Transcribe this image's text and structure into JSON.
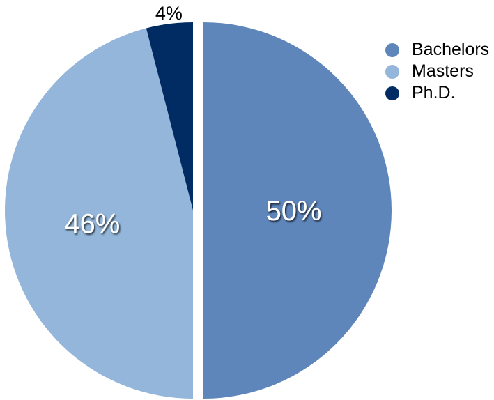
{
  "chart_data": {
    "type": "pie",
    "title": "",
    "slices": [
      {
        "label": "Bachelors",
        "value": 50,
        "display": "50%",
        "color": "#5e86ba"
      },
      {
        "label": "Masters",
        "value": 46,
        "display": "46%",
        "color": "#93b6da"
      },
      {
        "label": "Ph.D.",
        "value": 4,
        "display": "4%",
        "color": "#002c63"
      }
    ],
    "legend_position": "top-right",
    "exploded_slice": "Bachelors"
  }
}
